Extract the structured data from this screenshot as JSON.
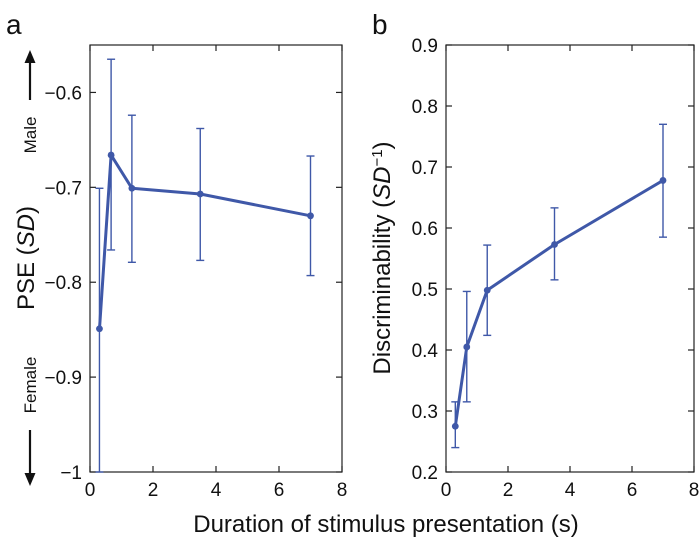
{
  "colors": {
    "series": "#3f58a8",
    "axis": "#222222",
    "text": "#111111"
  },
  "shared_xlabel": "Duration of stimulus presentation (s)",
  "chart_data": [
    {
      "type": "line",
      "panel": "a",
      "ylabel": "PSE (SD)",
      "ylabel_parts": {
        "pre": "PSE (",
        "italic": "SD",
        "post": ")"
      },
      "top_label": "Male",
      "bottom_label": "Female",
      "xlim": [
        0,
        8
      ],
      "ylim": [
        -1,
        -0.55
      ],
      "xticks": [
        0,
        2,
        4,
        6,
        8
      ],
      "yticks": [
        -1,
        -0.9,
        -0.8,
        -0.7,
        -0.6
      ],
      "ytick_labels": [
        "−1",
        "−0.9",
        "−0.8",
        "−0.7",
        "−0.6"
      ],
      "grid": false,
      "series": [
        {
          "x": [
            0.3,
            0.67,
            1.33,
            3.5,
            7.0
          ],
          "y": [
            -0.849,
            -0.666,
            -0.701,
            -0.707,
            -0.73
          ],
          "err_low": [
            -1.0,
            -0.766,
            -0.779,
            -0.777,
            -0.793
          ],
          "err_high": [
            -0.701,
            -0.565,
            -0.624,
            -0.638,
            -0.667
          ]
        }
      ]
    },
    {
      "type": "line",
      "panel": "b",
      "ylabel": "Discriminability (SD−1)",
      "ylabel_parts": {
        "pre": "Discriminability (",
        "italic": "SD",
        "sup": "−1",
        "post": ")"
      },
      "xlim": [
        0,
        8
      ],
      "ylim": [
        0.2,
        0.9
      ],
      "xticks": [
        0,
        2,
        4,
        6,
        8
      ],
      "yticks": [
        0.2,
        0.3,
        0.4,
        0.5,
        0.6,
        0.7,
        0.8,
        0.9
      ],
      "ytick_labels": [
        "0.2",
        "0.3",
        "0.4",
        "0.5",
        "0.6",
        "0.7",
        "0.8",
        "0.9"
      ],
      "grid": false,
      "series": [
        {
          "x": [
            0.3,
            0.67,
            1.33,
            3.5,
            7.0
          ],
          "y": [
            0.275,
            0.405,
            0.498,
            0.573,
            0.678
          ],
          "err_low": [
            0.24,
            0.315,
            0.424,
            0.515,
            0.585
          ],
          "err_high": [
            0.315,
            0.496,
            0.572,
            0.633,
            0.77
          ]
        }
      ]
    }
  ]
}
